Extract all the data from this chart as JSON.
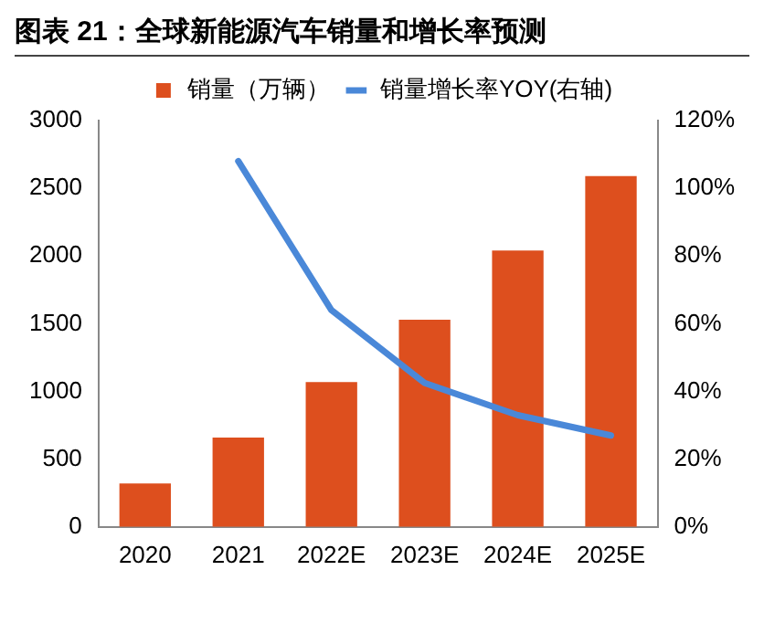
{
  "chart_data": {
    "type": "bar",
    "title": "图表 21：全球新能源汽车销量和增长率预测",
    "categories": [
      "2020",
      "2021",
      "2022E",
      "2023E",
      "2024E",
      "2025E"
    ],
    "series": [
      {
        "name": "销量（万辆）",
        "color": "#dd4f1e",
        "values": [
          320,
          660,
          1070,
          1530,
          2040,
          2590
        ]
      },
      {
        "name": "销量增长率YOY(右轴)",
        "type": "line",
        "axis": "y2",
        "color": "#4a88d8",
        "values": [
          null,
          108,
          64,
          42.5,
          33,
          27
        ]
      }
    ],
    "ylim": [
      0,
      3000
    ],
    "yticks": [
      0,
      500,
      1000,
      1500,
      2000,
      2500,
      3000
    ],
    "y2lim": [
      0,
      120
    ],
    "y2ticks": [
      {
        "value": 0,
        "label": "0%"
      },
      {
        "value": 20,
        "label": "20%"
      },
      {
        "value": 40,
        "label": "40%"
      },
      {
        "value": 60,
        "label": "60%"
      },
      {
        "value": 80,
        "label": "80%"
      },
      {
        "value": 100,
        "label": "100%"
      },
      {
        "value": 120,
        "label": "120%"
      }
    ],
    "legend": "top"
  }
}
